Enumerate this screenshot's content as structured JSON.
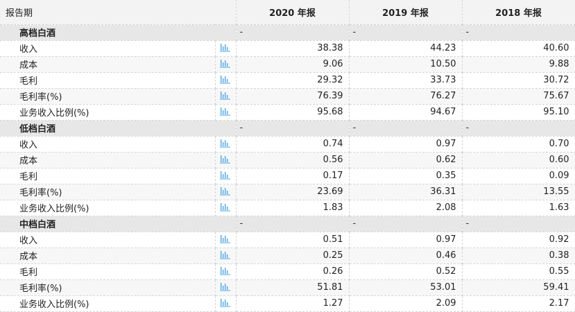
{
  "table": {
    "header": {
      "label": "报告期",
      "years": [
        "2020 年报",
        "2019 年报",
        "2018 年报"
      ]
    },
    "chart_icon": "bar-chart-icon",
    "accent_color": "#4aa3e6",
    "sections": [
      {
        "name": "高档白酒",
        "placeholders": [
          "-",
          "-",
          "-"
        ],
        "rows": [
          {
            "label": "收入",
            "values": [
              "38.38",
              "44.23",
              "40.60"
            ]
          },
          {
            "label": "成本",
            "values": [
              "9.06",
              "10.50",
              "9.88"
            ]
          },
          {
            "label": "毛利",
            "values": [
              "29.32",
              "33.73",
              "30.72"
            ]
          },
          {
            "label": "毛利率(%)",
            "values": [
              "76.39",
              "76.27",
              "75.67"
            ]
          },
          {
            "label": "业务收入比例(%)",
            "values": [
              "95.68",
              "94.67",
              "95.10"
            ]
          }
        ]
      },
      {
        "name": "低档白酒",
        "placeholders": [
          "-",
          "-",
          "-"
        ],
        "rows": [
          {
            "label": "收入",
            "values": [
              "0.74",
              "0.97",
              "0.70"
            ]
          },
          {
            "label": "成本",
            "values": [
              "0.56",
              "0.62",
              "0.60"
            ]
          },
          {
            "label": "毛利",
            "values": [
              "0.17",
              "0.35",
              "0.09"
            ]
          },
          {
            "label": "毛利率(%)",
            "values": [
              "23.69",
              "36.31",
              "13.55"
            ]
          },
          {
            "label": "业务收入比例(%)",
            "values": [
              "1.83",
              "2.08",
              "1.63"
            ]
          }
        ]
      },
      {
        "name": "中档白酒",
        "placeholders": [
          "-",
          "-",
          "-"
        ],
        "rows": [
          {
            "label": "收入",
            "values": [
              "0.51",
              "0.97",
              "0.92"
            ]
          },
          {
            "label": "成本",
            "values": [
              "0.25",
              "0.46",
              "0.38"
            ]
          },
          {
            "label": "毛利",
            "values": [
              "0.26",
              "0.52",
              "0.55"
            ]
          },
          {
            "label": "毛利率(%)",
            "values": [
              "51.81",
              "53.01",
              "59.41"
            ]
          },
          {
            "label": "业务收入比例(%)",
            "values": [
              "1.27",
              "2.09",
              "2.17"
            ]
          }
        ]
      }
    ]
  }
}
